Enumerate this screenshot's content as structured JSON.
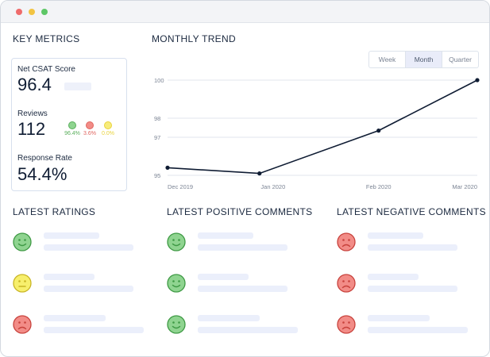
{
  "window": {
    "controls": [
      "close",
      "minimize",
      "maximize"
    ]
  },
  "key_metrics": {
    "title": "KEY METRICS",
    "net_csat": {
      "label": "Net CSAT Score",
      "value": "96.4"
    },
    "reviews": {
      "label": "Reviews",
      "value": "112",
      "breakdown": [
        {
          "label": "96.4%",
          "color": "#5aaf5c",
          "fill": "#8fd490"
        },
        {
          "label": "3.6%",
          "color": "#e0655f",
          "fill": "#f28c87"
        },
        {
          "label": "0.0%",
          "color": "#e9d33c",
          "fill": "#f7ec7c"
        }
      ]
    },
    "response_rate": {
      "label": "Response Rate",
      "value": "54.4%"
    }
  },
  "monthly_trend": {
    "title": "MONTHLY TREND",
    "toggle": {
      "options": [
        "Week",
        "Month",
        "Quarter"
      ],
      "selected": "Month"
    }
  },
  "chart_data": {
    "type": "line",
    "x": [
      "Dec 2019",
      "Jan 2020",
      "Feb 2020",
      "Mar 2020"
    ],
    "x_tick_labels": [
      "Dec 2019",
      "Jan 2020",
      "Feb 2020",
      "Mar 2020"
    ],
    "points": [
      {
        "x": "2019-12-01",
        "y": 95.4
      },
      {
        "x": "2019-12-28",
        "y": 95.1
      },
      {
        "x": "2020-02-01",
        "y": 97.35
      },
      {
        "x": "2020-03-01",
        "y": 100.0
      }
    ],
    "y_tick_labels": [
      "100",
      "98",
      "97",
      "95"
    ],
    "ylim": [
      95,
      100
    ],
    "grid": true,
    "line_color": "#0f1c33"
  },
  "latest_ratings": {
    "title": "LATEST RATINGS",
    "faces": [
      "happy",
      "neutral",
      "sad"
    ]
  },
  "latest_positive": {
    "title": "LATEST POSITIVE COMMENTS",
    "faces": [
      "happy",
      "happy",
      "happy"
    ]
  },
  "latest_negative": {
    "title": "LATEST NEGATIVE COMMENTS",
    "faces": [
      "sad",
      "sad",
      "sad"
    ]
  },
  "colors": {
    "happy_fill": "#8fd490",
    "happy_stroke": "#3f9a45",
    "neutral_fill": "#f7ef6c",
    "neutral_stroke": "#c9b525",
    "sad_fill": "#f28c87",
    "sad_stroke": "#c8433d"
  }
}
